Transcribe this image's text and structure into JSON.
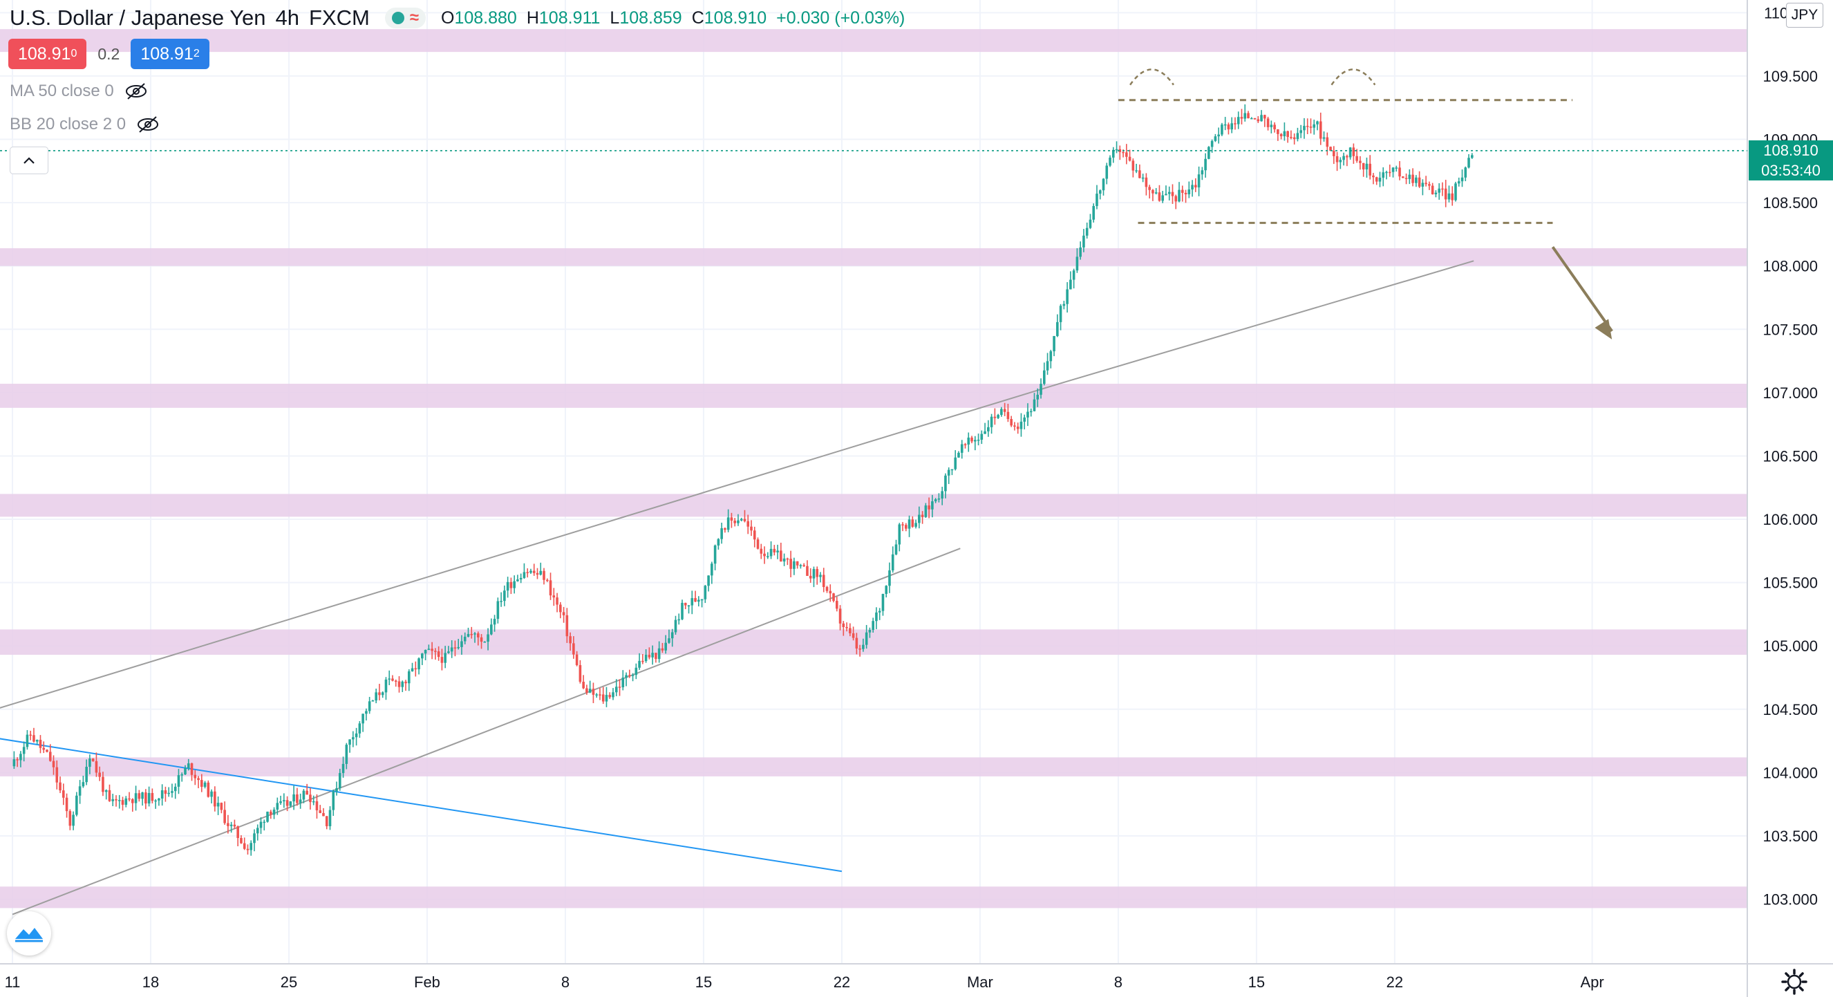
{
  "header": {
    "title": "U.S. Dollar / Japanese Yen",
    "interval": "4h",
    "source": "FXCM",
    "ohlc": {
      "o_label": "O",
      "o": "108.880",
      "h_label": "H",
      "h": "108.911",
      "l_label": "L",
      "l": "108.859",
      "c_label": "C",
      "c": "108.910",
      "change": "+0.030 (+0.03%)"
    }
  },
  "quote": {
    "sell_main": "108.91",
    "sell_sup": "0",
    "spread": "0.2",
    "buy_main": "108.91",
    "buy_sup": "2"
  },
  "indicators": [
    {
      "label": "MA 50 close 0"
    },
    {
      "label": "BB 20 close 2 0"
    }
  ],
  "currency_button": "JPY",
  "price_tag": {
    "price": "108.910",
    "countdown": "03:53:40"
  },
  "colors": {
    "up": "#26a69a",
    "down": "#ef5350",
    "zone": "#e8cde9",
    "channel": "#9e9e9e",
    "blue_trend": "#2196f3",
    "pattern": "#8b7d5a",
    "last_price": "#089981"
  },
  "chart_data": {
    "type": "candlestick",
    "symbol": "USDJPY",
    "timeframe": "4h",
    "x_ticks": [
      "11",
      "18",
      "25",
      "Feb",
      "8",
      "15",
      "22",
      "Mar",
      "8",
      "15",
      "22",
      "Apr"
    ],
    "y_ticks": [
      "103.000",
      "103.500",
      "104.000",
      "104.500",
      "105.000",
      "105.500",
      "106.000",
      "106.500",
      "107.000",
      "107.500",
      "108.000",
      "108.500",
      "109.000",
      "109.500",
      "110.000"
    ],
    "ylim": [
      102.49,
      110.1
    ],
    "last_price": 108.91,
    "zones": [
      [
        102.93,
        103.1
      ],
      [
        103.97,
        104.12
      ],
      [
        104.93,
        105.13
      ],
      [
        106.02,
        106.2
      ],
      [
        106.88,
        107.07
      ],
      [
        108.0,
        108.14
      ],
      [
        109.69,
        109.87
      ]
    ],
    "channel_upper": [
      [
        "Jan 7",
        104.35
      ],
      [
        "Mar 5",
        107.07
      ]
    ],
    "channel_lower": [
      [
        "Jan 11",
        102.88
      ],
      [
        "Feb 28",
        105.77
      ]
    ],
    "upper_extension": [
      [
        "Mar 5",
        107.07
      ],
      [
        "Mar 26",
        108.04
      ]
    ],
    "blue_trend": [
      [
        "Jan 7",
        104.35
      ],
      [
        "Feb 22",
        103.22
      ]
    ],
    "range_top": [
      [
        "Mar 8",
        109.31
      ],
      [
        "Mar 31",
        109.31
      ]
    ],
    "range_bottom": [
      [
        "Mar 9",
        108.34
      ],
      [
        "Mar 30",
        108.34
      ]
    ],
    "arrow": {
      "from": [
        "Mar 30",
        108.15
      ],
      "to": [
        "Apr 2",
        107.42
      ]
    },
    "waypoints": [
      [
        "Jan 11",
        104.05
      ],
      [
        "Jan 12",
        104.3
      ],
      [
        "Jan 13",
        104.1
      ],
      [
        "Jan 14",
        103.6
      ],
      [
        "Jan 15",
        104.15
      ],
      [
        "Jan 16",
        103.75
      ],
      [
        "Jan 17",
        103.8
      ],
      [
        "Jan 18",
        103.8
      ],
      [
        "Jan 19",
        103.85
      ],
      [
        "Jan 20",
        104.05
      ],
      [
        "Jan 21",
        103.85
      ],
      [
        "Jan 22",
        103.6
      ],
      [
        "Jan 23",
        103.4
      ],
      [
        "Jan 24",
        103.7
      ],
      [
        "Jan 25",
        103.75
      ],
      [
        "Jan 26",
        103.85
      ],
      [
        "Jan 27",
        103.62
      ],
      [
        "Jan 28",
        104.2
      ],
      [
        "Jan 29",
        104.5
      ],
      [
        "Jan 30",
        104.7
      ],
      [
        "Jan 31",
        104.72
      ],
      [
        "Feb 1",
        104.95
      ],
      [
        "Feb 2",
        104.9
      ],
      [
        "Feb 3",
        105.1
      ],
      [
        "Feb 4",
        105.05
      ],
      [
        "Feb 5",
        105.45
      ],
      [
        "Feb 6",
        105.6
      ],
      [
        "Feb 7",
        105.55
      ],
      [
        "Feb 8",
        105.2
      ],
      [
        "Feb 9",
        104.65
      ],
      [
        "Feb 10",
        104.58
      ],
      [
        "Feb 11",
        104.72
      ],
      [
        "Feb 12",
        104.9
      ],
      [
        "Feb 13",
        104.95
      ],
      [
        "Feb 14",
        105.3
      ],
      [
        "Feb 15",
        105.4
      ],
      [
        "Feb 16",
        105.95
      ],
      [
        "Feb 17",
        106.02
      ],
      [
        "Feb 18",
        105.75
      ],
      [
        "Feb 19",
        105.7
      ],
      [
        "Feb 20",
        105.6
      ],
      [
        "Feb 21",
        105.55
      ],
      [
        "Feb 22",
        105.2
      ],
      [
        "Feb 23",
        104.95
      ],
      [
        "Feb 24",
        105.3
      ],
      [
        "Feb 25",
        105.95
      ],
      [
        "Feb 26",
        106.0
      ],
      [
        "Feb 27",
        106.2
      ],
      [
        "Feb 28",
        106.55
      ],
      [
        "Mar 1",
        106.65
      ],
      [
        "Mar 2",
        106.85
      ],
      [
        "Mar 3",
        106.75
      ],
      [
        "Mar 4",
        106.95
      ],
      [
        "Mar 5",
        107.55
      ],
      [
        "Mar 6",
        108.1
      ],
      [
        "Mar 7",
        108.55
      ],
      [
        "Mar 8",
        108.95
      ],
      [
        "Mar 9",
        108.75
      ],
      [
        "Mar 10",
        108.55
      ],
      [
        "Mar 11",
        108.55
      ],
      [
        "Mar 12",
        108.65
      ],
      [
        "Mar 13",
        109.05
      ],
      [
        "Mar 14",
        109.15
      ],
      [
        "Mar 15",
        109.2
      ],
      [
        "Mar 16",
        109.05
      ],
      [
        "Mar 17",
        109.0
      ],
      [
        "Mar 18",
        109.15
      ],
      [
        "Mar 19",
        108.85
      ],
      [
        "Mar 20",
        108.9
      ],
      [
        "Mar 21",
        108.7
      ],
      [
        "Mar 22",
        108.75
      ],
      [
        "Mar 23",
        108.7
      ],
      [
        "Mar 24",
        108.6
      ],
      [
        "Mar 25",
        108.55
      ],
      [
        "Mar 26",
        108.91
      ]
    ]
  }
}
